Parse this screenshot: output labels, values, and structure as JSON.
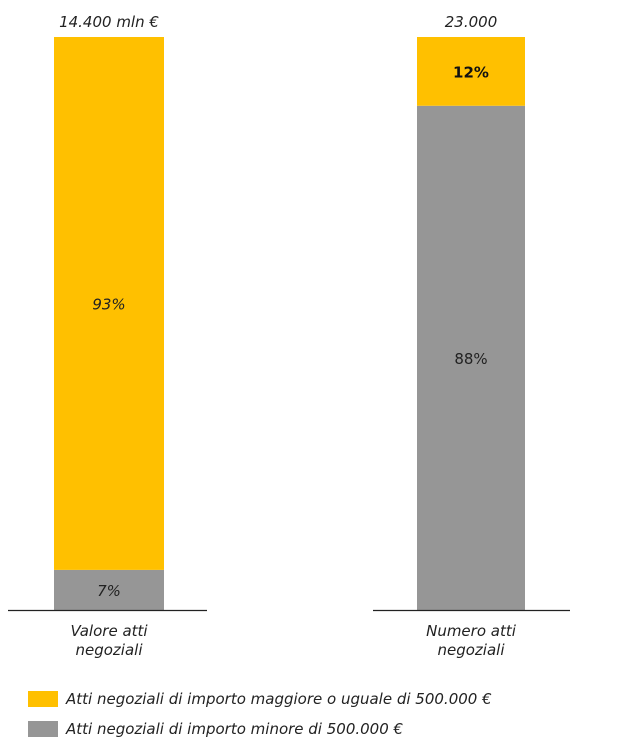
{
  "chart_data": {
    "type": "bar",
    "stacked": true,
    "normalized": true,
    "categories": [
      "Valore atti negoziali",
      "Numero atti negoziali"
    ],
    "category_lines": [
      [
        "Valore atti",
        "negoziali"
      ],
      [
        "Numero atti",
        "negoziali"
      ]
    ],
    "totals": [
      "14.400 mln €",
      "23.000"
    ],
    "series": [
      {
        "name": "Atti negoziali di importo minore di 500.000 €",
        "values": [
          7,
          88
        ],
        "labels": [
          "7%",
          "88%"
        ],
        "color": "#969696"
      },
      {
        "name": "Atti negoziali di importo maggiore o uguale di 500.000 €",
        "values": [
          93,
          12
        ],
        "labels": [
          "93%",
          "12%"
        ],
        "color": "#FFC000"
      }
    ],
    "ylim": [
      0,
      100
    ],
    "grid": false,
    "legend_position": "bottom-left"
  },
  "legend": [
    {
      "label": "Atti negoziali di importo maggiore o uguale di 500.000 €",
      "color": "#FFC000"
    },
    {
      "label": "Atti negoziali di importo minore di 500.000 €",
      "color": "#969696"
    }
  ]
}
